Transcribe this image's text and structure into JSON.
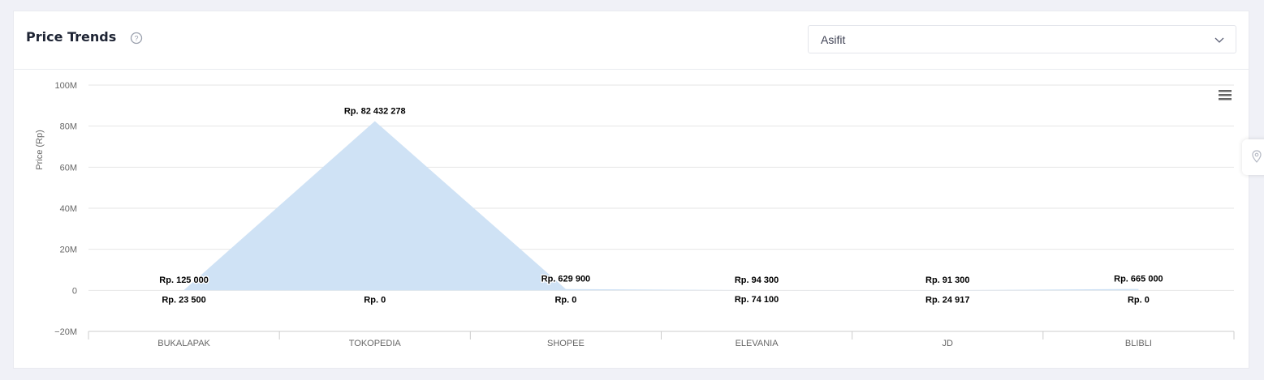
{
  "header": {
    "title": "Price Trends",
    "help_icon": "question-circle-icon",
    "select": {
      "value": "Asifit",
      "icon": "chevron-down-icon"
    }
  },
  "menu_icon": "hamburger-menu-icon",
  "side_tab_icon": "location-pin-icon",
  "chart_data": {
    "type": "area",
    "ylabel": "Price (Rp)",
    "ylim": [
      -20000000,
      100000000
    ],
    "yticks": [
      {
        "value": 100000000,
        "label": "100M"
      },
      {
        "value": 80000000,
        "label": "80M"
      },
      {
        "value": 60000000,
        "label": "60M"
      },
      {
        "value": 40000000,
        "label": "40M"
      },
      {
        "value": 20000000,
        "label": "20M"
      },
      {
        "value": 0,
        "label": "0"
      },
      {
        "value": -20000000,
        "label": "−20M"
      }
    ],
    "grid": true,
    "categories": [
      "BUKALAPAK",
      "TOKOPEDIA",
      "SHOPEE",
      "ELEVANIA",
      "JD",
      "BLIBLI"
    ],
    "series": [
      {
        "kind": "arearange",
        "low": [
          23500,
          0,
          0,
          74100,
          24917,
          0
        ],
        "high": [
          125000,
          82432278,
          629900,
          94300,
          91300,
          665000
        ],
        "color": "#cfe2f5"
      }
    ],
    "high_labels": [
      "Rp. 125 000",
      "Rp. 82 432 278",
      "Rp. 629 900",
      "Rp. 94 300",
      "Rp. 91 300",
      "Rp. 665 000"
    ],
    "low_labels": [
      "Rp. 23 500",
      "Rp. 0",
      "Rp. 0",
      "Rp. 74 100",
      "Rp. 24 917",
      "Rp. 0"
    ]
  }
}
